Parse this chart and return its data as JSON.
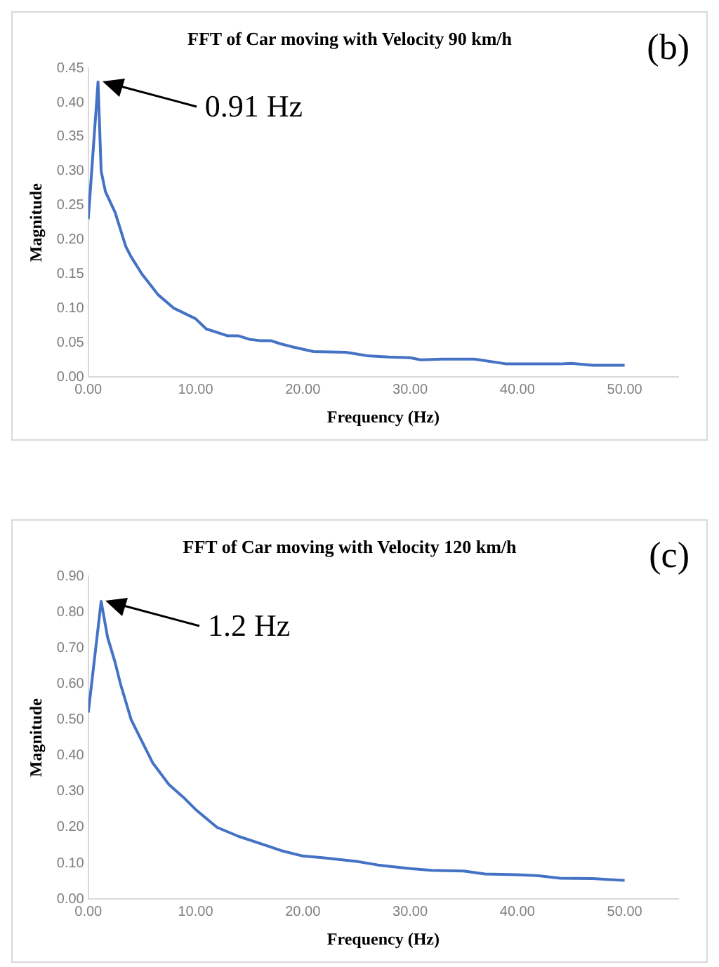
{
  "chart_data": [
    {
      "type": "line",
      "title": "FFT of Car moving with Velocity 90 km/h",
      "xlabel": "Frequency (Hz)",
      "ylabel": "Magnitude",
      "x": [
        0,
        0.91,
        1.2,
        1.6,
        2.5,
        3.5,
        4,
        5,
        5.5,
        6.5,
        8,
        10,
        11,
        12,
        13,
        14,
        15,
        16,
        17,
        18,
        19,
        21,
        24,
        26,
        28,
        30,
        31,
        33,
        36,
        39,
        44,
        45,
        47,
        50
      ],
      "series": [
        {
          "color": "#4472c4",
          "values": [
            0.23,
            0.43,
            0.3,
            0.27,
            0.24,
            0.19,
            0.175,
            0.15,
            0.14,
            0.12,
            0.1,
            0.085,
            0.07,
            0.065,
            0.06,
            0.06,
            0.055,
            0.053,
            0.053,
            0.048,
            0.044,
            0.037,
            0.036,
            0.031,
            0.029,
            0.028,
            0.025,
            0.026,
            0.026,
            0.019,
            0.019,
            0.02,
            0.017,
            0.017
          ]
        }
      ],
      "xlim": [
        0,
        55
      ],
      "xticks": [
        {
          "value": 0,
          "label": "0.00"
        },
        {
          "value": 10,
          "label": "10.00"
        },
        {
          "value": 20,
          "label": "20.00"
        },
        {
          "value": 30,
          "label": "30.00"
        },
        {
          "value": 40,
          "label": "40.00"
        },
        {
          "value": 50,
          "label": "50.00"
        }
      ],
      "ylim": [
        0,
        0.45
      ],
      "yticks": [
        {
          "value": 0,
          "label": "0.00"
        },
        {
          "value": 0.05,
          "label": "0.05"
        },
        {
          "value": 0.1,
          "label": "0.10"
        },
        {
          "value": 0.15,
          "label": "0.15"
        },
        {
          "value": 0.2,
          "label": "0.20"
        },
        {
          "value": 0.25,
          "label": "0.25"
        },
        {
          "value": 0.3,
          "label": "0.30"
        },
        {
          "value": 0.35,
          "label": "0.35"
        },
        {
          "value": 0.4,
          "label": "0.40"
        },
        {
          "value": 0.45,
          "label": "0.45"
        }
      ],
      "grid": false,
      "legend": false,
      "marker": "none",
      "line_style": "solid",
      "annotations": [
        "0.91 Hz",
        "(b)"
      ]
    },
    {
      "type": "line",
      "title": "FFT of Car moving with Velocity 120 km/h",
      "xlabel": "Frequency (Hz)",
      "ylabel": "Magnitude",
      "x": [
        0,
        1.2,
        1.8,
        2.5,
        3,
        4,
        5,
        6,
        7.5,
        9,
        10,
        12,
        14,
        16,
        18,
        20,
        22,
        25,
        27,
        30,
        32,
        35,
        37,
        40,
        42,
        44,
        47,
        50
      ],
      "series": [
        {
          "color": "#4472c4",
          "values": [
            0.52,
            0.83,
            0.73,
            0.66,
            0.6,
            0.5,
            0.44,
            0.38,
            0.32,
            0.28,
            0.25,
            0.2,
            0.175,
            0.155,
            0.135,
            0.12,
            0.115,
            0.105,
            0.095,
            0.085,
            0.08,
            0.078,
            0.07,
            0.068,
            0.065,
            0.058,
            0.057,
            0.052
          ]
        }
      ],
      "xlim": [
        0,
        55
      ],
      "xticks": [
        {
          "value": 0,
          "label": "0.00"
        },
        {
          "value": 10,
          "label": "10.00"
        },
        {
          "value": 20,
          "label": "20.00"
        },
        {
          "value": 30,
          "label": "30.00"
        },
        {
          "value": 40,
          "label": "40.00"
        },
        {
          "value": 50,
          "label": "50.00"
        }
      ],
      "ylim": [
        0,
        0.9
      ],
      "yticks": [
        {
          "value": 0,
          "label": "0.00"
        },
        {
          "value": 0.1,
          "label": "0.10"
        },
        {
          "value": 0.2,
          "label": "0.20"
        },
        {
          "value": 0.3,
          "label": "0.30"
        },
        {
          "value": 0.4,
          "label": "0.40"
        },
        {
          "value": 0.5,
          "label": "0.50"
        },
        {
          "value": 0.6,
          "label": "0.60"
        },
        {
          "value": 0.7,
          "label": "0.70"
        },
        {
          "value": 0.8,
          "label": "0.80"
        },
        {
          "value": 0.9,
          "label": "0.90"
        }
      ],
      "grid": false,
      "legend": false,
      "marker": "none",
      "line_style": "solid",
      "annotations": [
        "1.2 Hz",
        "(c)"
      ]
    }
  ]
}
